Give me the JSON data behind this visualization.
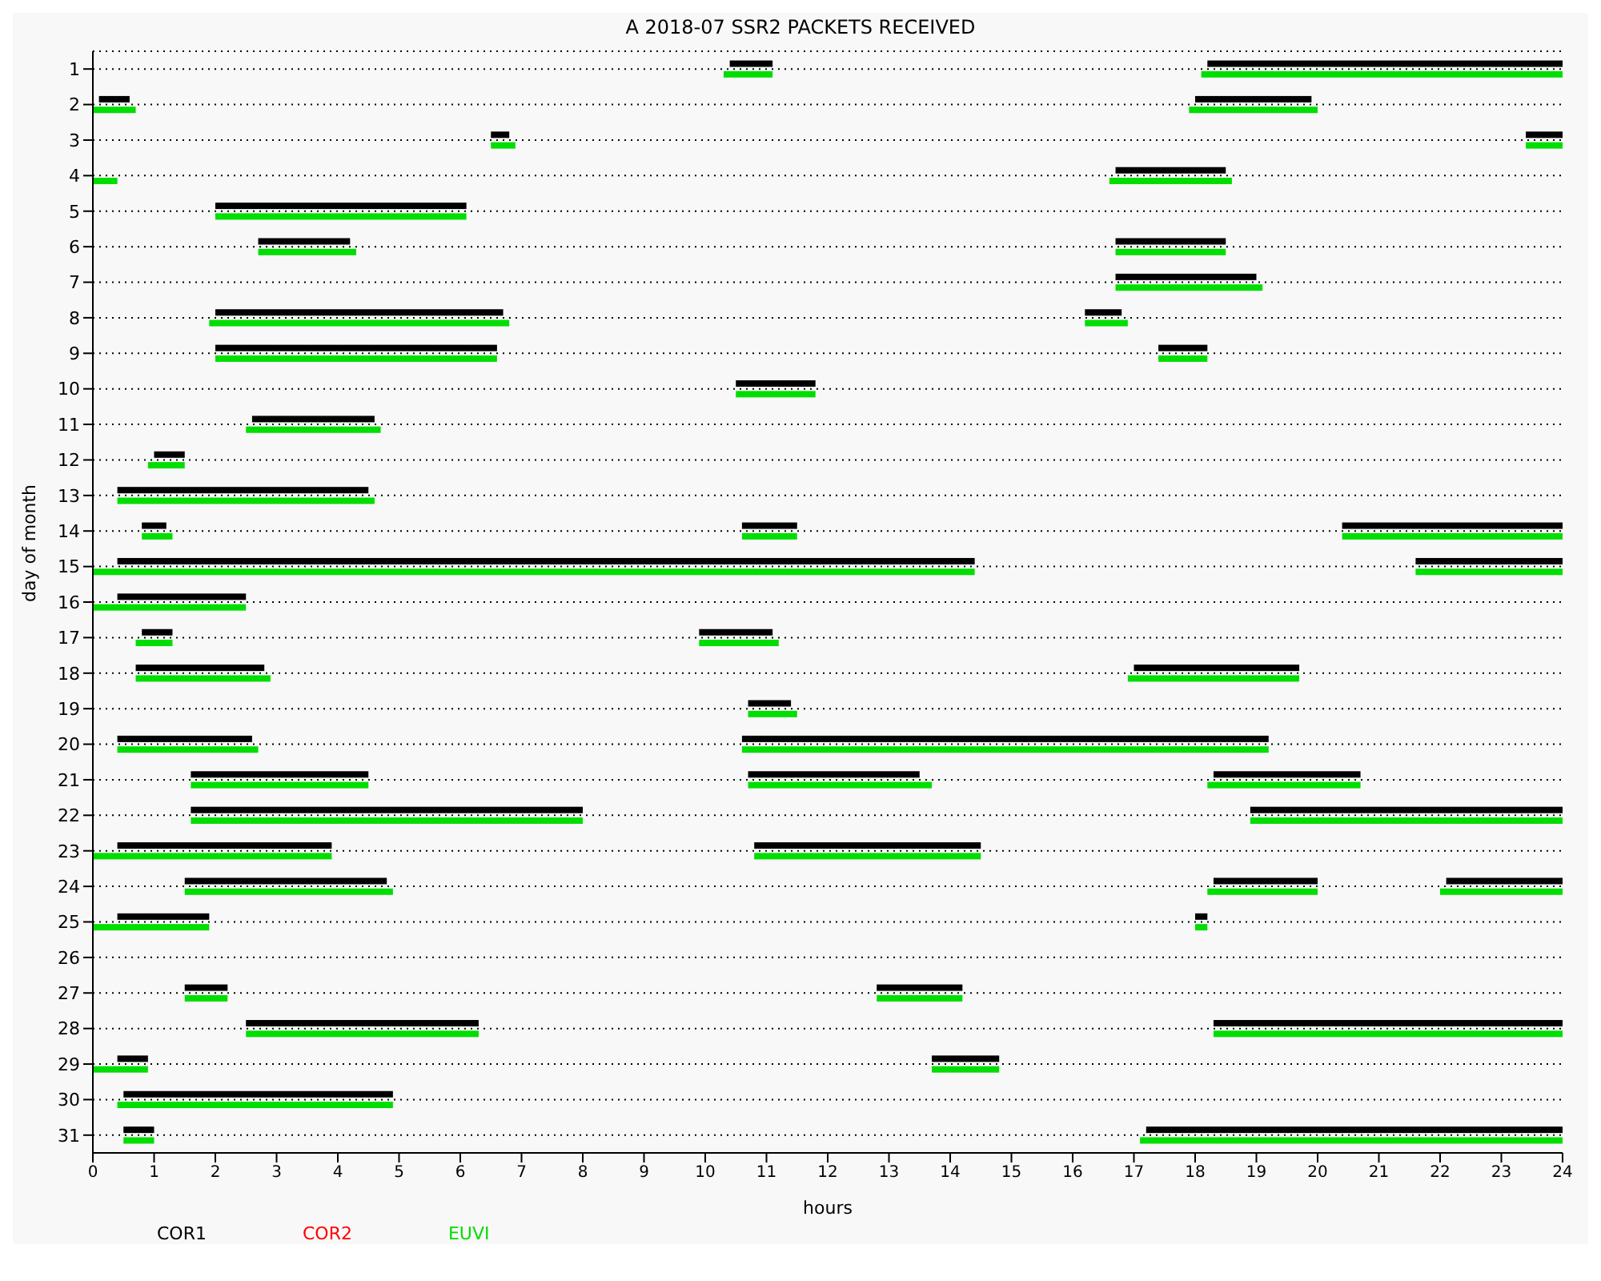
{
  "chart_data": {
    "type": "bar",
    "orientation": "horizontal",
    "title": "A  2018-07 SSR2 PACKETS RECEIVED",
    "xlabel": "hours",
    "ylabel": "day of month",
    "categories": [
      "1",
      "2",
      "3",
      "4",
      "5",
      "6",
      "7",
      "8",
      "9",
      "10",
      "11",
      "12",
      "13",
      "14",
      "15",
      "16",
      "17",
      "18",
      "19",
      "20",
      "21",
      "22",
      "23",
      "24",
      "25",
      "26",
      "27",
      "28",
      "29",
      "30",
      "31"
    ],
    "xlim": [
      0,
      24
    ],
    "xticks": [
      0,
      1,
      2,
      3,
      4,
      5,
      6,
      7,
      8,
      9,
      10,
      11,
      12,
      13,
      14,
      15,
      16,
      17,
      18,
      19,
      20,
      21,
      22,
      23,
      24
    ],
    "grid": "y",
    "legend": "bottom left",
    "series": [
      {
        "name": "COR1",
        "color": "#000000",
        "base": [
          10.4,
          0.1,
          6.5,
          16.7,
          2.0,
          2.7,
          16.7,
          2.0,
          2.0,
          10.5,
          2.6,
          1.0,
          0.4,
          0.8,
          0.4,
          0.4,
          0.8,
          0.7,
          10.7,
          0.4,
          1.6,
          1.6,
          0.4,
          1.5,
          0.4,
          null,
          1.5,
          2.5,
          0.4,
          0.5,
          0.5
        ],
        "values": [
          0.7,
          0.5,
          0.3,
          1.8,
          4.1,
          1.5,
          2.3,
          4.7,
          4.6,
          1.3,
          2.0,
          0.5,
          4.1,
          0.4,
          14.0,
          2.1,
          0.5,
          2.1,
          0.7,
          2.2,
          2.9,
          6.4,
          3.5,
          3.3,
          1.5,
          null,
          0.7,
          3.8,
          0.5,
          4.4,
          0.5
        ]
      },
      {
        "color": "#000000",
        "base": [
          18.2,
          18.0,
          23.4,
          null,
          null,
          16.7,
          null,
          16.2,
          17.4,
          null,
          null,
          null,
          null,
          10.6,
          21.6,
          null,
          9.9,
          17.0,
          null,
          10.6,
          10.7,
          18.9,
          10.8,
          18.3,
          18.0,
          null,
          12.8,
          18.3,
          13.7,
          null,
          17.2
        ],
        "values": [
          5.8,
          1.9,
          0.6,
          null,
          null,
          1.8,
          null,
          0.6,
          0.8,
          null,
          null,
          null,
          null,
          0.9,
          2.4,
          null,
          1.2,
          2.7,
          null,
          8.6,
          2.8,
          5.1,
          3.7,
          1.7,
          0.2,
          null,
          1.4,
          5.7,
          1.1,
          null,
          6.8
        ]
      },
      {
        "color": "#000000",
        "base": [
          null,
          null,
          null,
          null,
          null,
          null,
          null,
          null,
          null,
          null,
          null,
          null,
          null,
          20.4,
          null,
          null,
          null,
          null,
          null,
          null,
          18.3,
          null,
          null,
          22.1,
          null,
          null,
          null,
          null,
          null,
          null,
          null
        ],
        "values": [
          null,
          null,
          null,
          null,
          null,
          null,
          null,
          null,
          null,
          null,
          null,
          null,
          null,
          3.6,
          null,
          null,
          null,
          null,
          null,
          null,
          2.4,
          null,
          null,
          1.9,
          null,
          null,
          null,
          null,
          null,
          null,
          null
        ]
      },
      {
        "name": "COR2",
        "color": "#ff0000",
        "base": [
          null,
          null,
          null,
          null,
          null,
          null,
          null,
          null,
          null,
          null,
          null,
          null,
          null,
          null,
          null,
          null,
          null,
          null,
          null,
          null,
          null,
          null,
          null,
          null,
          null,
          null,
          null,
          null,
          null,
          null,
          null
        ],
        "values": [
          null,
          null,
          null,
          null,
          null,
          null,
          null,
          null,
          null,
          null,
          null,
          null,
          null,
          null,
          null,
          null,
          null,
          null,
          null,
          null,
          null,
          null,
          null,
          null,
          null,
          null,
          null,
          null,
          null,
          null,
          null
        ]
      },
      {
        "name": "EUVI",
        "color": "#00dd00",
        "base": [
          10.3,
          0,
          6.5,
          0,
          2.0,
          2.7,
          16.7,
          1.9,
          2.0,
          10.5,
          2.5,
          0.9,
          0.4,
          0.8,
          0,
          0,
          0.7,
          0.7,
          10.7,
          0.4,
          1.6,
          1.6,
          0,
          1.5,
          0,
          null,
          1.5,
          2.5,
          0,
          0.4,
          0.5
        ],
        "values": [
          0.8,
          0.7,
          0.4,
          0.4,
          4.1,
          1.6,
          2.4,
          4.9,
          4.6,
          1.3,
          2.2,
          0.6,
          4.2,
          0.5,
          14.4,
          2.5,
          0.6,
          2.2,
          0.8,
          2.3,
          2.9,
          6.4,
          3.9,
          3.4,
          1.9,
          null,
          0.7,
          3.8,
          0.9,
          4.5,
          0.5
        ]
      },
      {
        "color": "#00dd00",
        "base": [
          18.1,
          17.9,
          23.4,
          16.6,
          null,
          16.7,
          null,
          16.2,
          17.4,
          null,
          null,
          null,
          null,
          10.6,
          21.6,
          null,
          9.9,
          16.9,
          null,
          10.6,
          10.7,
          18.9,
          10.8,
          18.2,
          18.0,
          null,
          12.8,
          18.3,
          13.7,
          null,
          17.1
        ],
        "values": [
          5.9,
          2.1,
          0.6,
          2.0,
          null,
          1.8,
          null,
          0.7,
          0.8,
          null,
          null,
          null,
          null,
          0.9,
          2.4,
          null,
          1.3,
          2.8,
          null,
          8.6,
          3.0,
          5.1,
          3.7,
          1.8,
          0.2,
          null,
          1.4,
          5.7,
          1.1,
          null,
          6.9
        ]
      },
      {
        "color": "#00dd00",
        "base": [
          null,
          null,
          null,
          null,
          null,
          null,
          null,
          null,
          null,
          null,
          null,
          null,
          null,
          20.4,
          null,
          null,
          null,
          null,
          null,
          null,
          18.2,
          null,
          null,
          22.0,
          null,
          null,
          null,
          null,
          null,
          null,
          null
        ],
        "values": [
          null,
          null,
          null,
          null,
          null,
          null,
          null,
          null,
          null,
          null,
          null,
          null,
          null,
          3.6,
          null,
          null,
          null,
          null,
          null,
          null,
          2.5,
          null,
          null,
          2.0,
          null,
          null,
          null,
          null,
          null,
          null,
          null
        ]
      }
    ]
  }
}
